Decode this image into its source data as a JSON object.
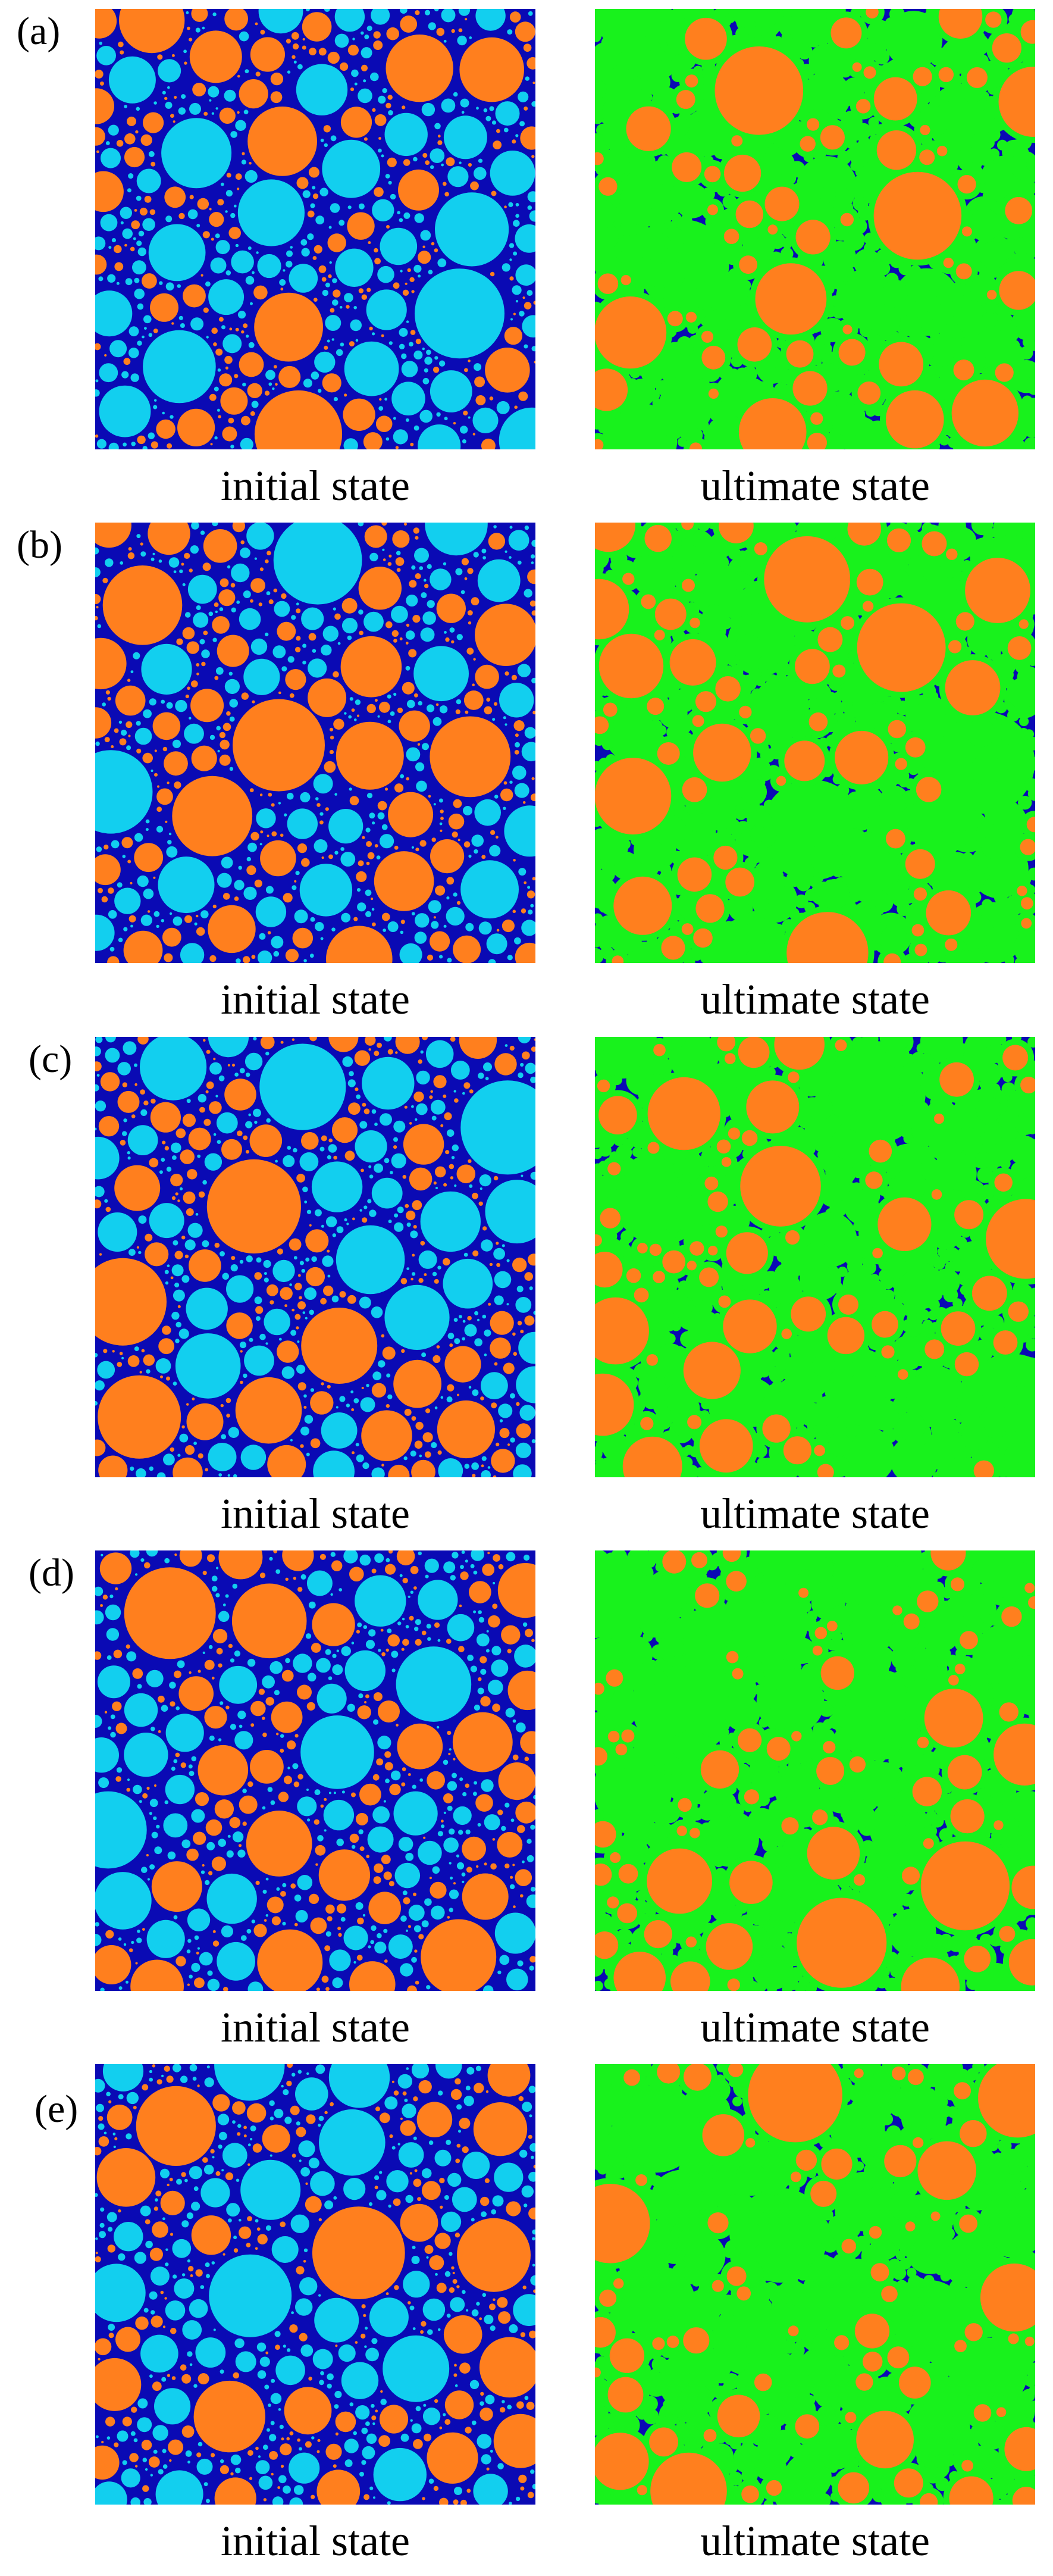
{
  "colors": {
    "matrix": "#0a0ab4",
    "aggregate_orange": "#ff7f1e",
    "pore_cyan": "#12cfef",
    "product_green": "#18f21c"
  },
  "rows": [
    {
      "label": "(a)",
      "initial_caption": "initial state",
      "ultimate_caption": "ultimate state"
    },
    {
      "label": "(b)",
      "initial_caption": "initial state",
      "ultimate_caption": "ultimate state"
    },
    {
      "label": "(c)",
      "initial_caption": "initial state",
      "ultimate_caption": "ultimate state"
    },
    {
      "label": "(d)",
      "initial_caption": "initial state",
      "ultimate_caption": "ultimate state"
    },
    {
      "label": "(e)",
      "initial_caption": "initial state",
      "ultimate_caption": "ultimate state"
    }
  ]
}
